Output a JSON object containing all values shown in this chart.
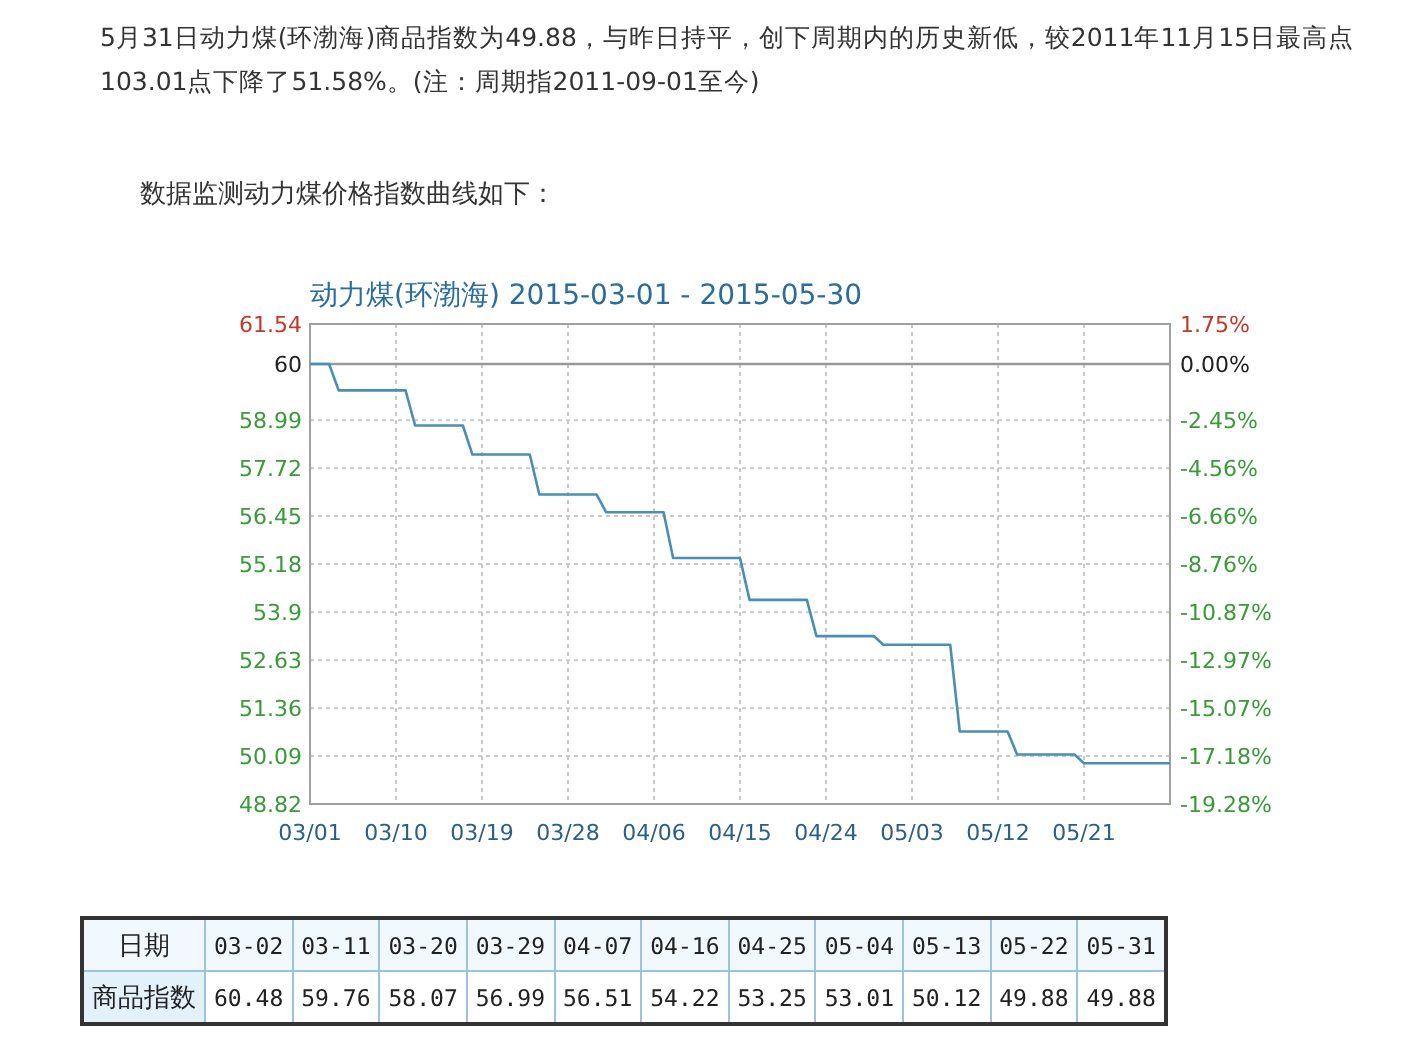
{
  "chart_data": [
    {
      "type": "line",
      "title": "动力煤(环渤海) 2015-03-01 - 2015-05-30",
      "annotations": [
        "5月31日动力煤(环渤海)商品指数为49.88，与昨日持平，创下周期内的历史新低，较2011年11月15日最高点103.01点下降了51.58%。(注：周期指2011-09-01至今)",
        "数据监测动力煤价格指数曲线如下："
      ],
      "x": [
        "2015-03-01",
        "2015-03-03",
        "2015-03-04",
        "2015-03-11",
        "2015-03-12",
        "2015-03-17",
        "2015-03-18",
        "2015-03-24",
        "2015-03-25",
        "2015-03-31",
        "2015-04-01",
        "2015-04-07",
        "2015-04-08",
        "2015-04-15",
        "2015-04-16",
        "2015-04-22",
        "2015-04-23",
        "2015-04-29",
        "2015-04-30",
        "2015-05-07",
        "2015-05-08",
        "2015-05-13",
        "2015-05-14",
        "2015-05-20",
        "2015-05-21",
        "2015-05-30"
      ],
      "values": [
        60.48,
        60.48,
        59.78,
        59.78,
        58.85,
        58.85,
        58.08,
        58.08,
        57.02,
        57.02,
        56.55,
        56.55,
        55.34,
        55.34,
        54.23,
        54.23,
        53.27,
        53.27,
        53.04,
        53.04,
        50.74,
        50.74,
        50.13,
        50.13,
        49.9,
        49.9
      ],
      "color": "#4a8fb3",
      "xlim": [
        "2015-03-01",
        "2015-05-30"
      ],
      "xticks": [
        {
          "value": "2015-03-01",
          "label": "03/01"
        },
        {
          "value": "2015-03-10",
          "label": "03/10"
        },
        {
          "value": "2015-03-19",
          "label": "03/19"
        },
        {
          "value": "2015-03-28",
          "label": "03/28"
        },
        {
          "value": "2015-04-06",
          "label": "04/06"
        },
        {
          "value": "2015-04-15",
          "label": "04/15"
        },
        {
          "value": "2015-04-24",
          "label": "04/24"
        },
        {
          "value": "2015-05-03",
          "label": "05/03"
        },
        {
          "value": "2015-05-12",
          "label": "05/12"
        },
        {
          "value": "2015-05-21",
          "label": "05/21"
        }
      ],
      "ylim": [
        48.82,
        61.54
      ],
      "yticks": [
        61.54,
        58.99,
        57.72,
        56.45,
        55.18,
        53.9,
        52.63,
        51.36,
        50.09,
        48.82
      ],
      "y2lim": [
        -19.28,
        1.75
      ],
      "y2ticks": [
        {
          "value": 1.75,
          "label": "1.75%"
        },
        {
          "value": 0,
          "label": "0.00%"
        },
        {
          "value": -2.45,
          "label": "-2.45%"
        },
        {
          "value": -4.56,
          "label": "-4.56%"
        },
        {
          "value": -6.66,
          "label": "-6.66%"
        },
        {
          "value": -8.76,
          "label": "-8.76%"
        },
        {
          "value": -10.87,
          "label": "-10.87%"
        },
        {
          "value": -12.97,
          "label": "-12.97%"
        },
        {
          "value": -15.07,
          "label": "-15.07%"
        },
        {
          "value": -17.18,
          "label": "-17.18%"
        },
        {
          "value": -19.28,
          "label": "-19.28%"
        }
      ],
      "ref_lines": [
        {
          "axis": "y",
          "value": 60.48,
          "label": "60",
          "color": "#999999"
        }
      ],
      "grid": true
    },
    {
      "type": "other",
      "xlabel": "日期",
      "ylabel": "商品指数",
      "categories": [
        "03-02",
        "03-11",
        "03-20",
        "03-29",
        "04-07",
        "04-16",
        "04-25",
        "05-04",
        "05-13",
        "05-22",
        "05-31"
      ],
      "values": [
        60.48,
        59.76,
        58.07,
        56.99,
        56.51,
        54.22,
        53.25,
        53.01,
        50.12,
        49.88,
        49.88
      ],
      "data_labels": true
    }
  ]
}
